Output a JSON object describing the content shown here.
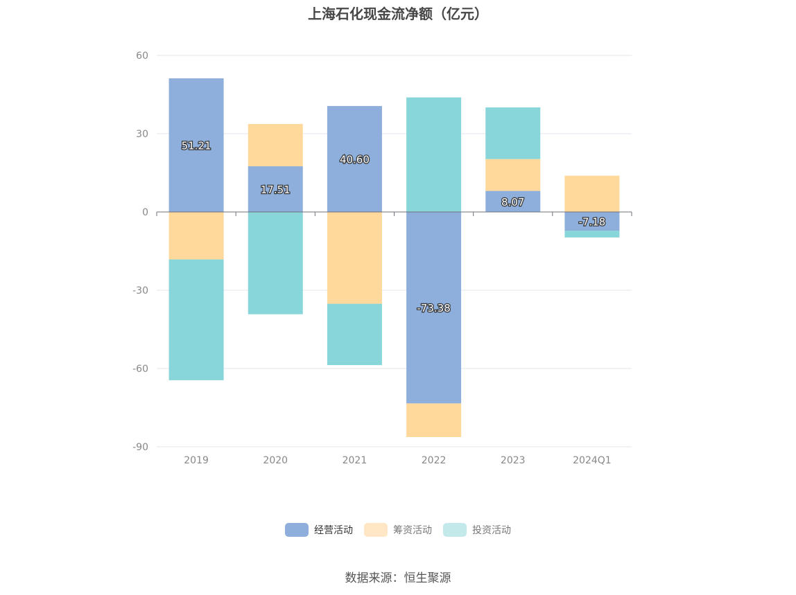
{
  "chart_data": {
    "type": "bar",
    "stacked": true,
    "title": "上海石化现金流净额（亿元）",
    "categories": [
      "2019",
      "2020",
      "2021",
      "2022",
      "2023",
      "2024Q1"
    ],
    "ylim": [
      -90,
      60
    ],
    "yticks": [
      60,
      30,
      0,
      -30,
      -60,
      -90
    ],
    "grid": true,
    "legend_position": "bottom",
    "series": [
      {
        "name": "经营活动",
        "color": "#8EAEDB",
        "values": [
          51.21,
          17.51,
          40.6,
          -73.38,
          8.07,
          -7.18
        ],
        "labels": [
          "51.21",
          "17.51",
          "40.60",
          "-73.38",
          "8.07",
          "-7.18"
        ]
      },
      {
        "name": "筹资活动",
        "color": "#FFD99B",
        "values": [
          -18.2,
          16.2,
          -35.2,
          -12.9,
          12.2,
          13.9
        ]
      },
      {
        "name": "投资活动",
        "color": "#88D6D9",
        "values": [
          -46.3,
          -39.2,
          -23.5,
          43.9,
          19.8,
          -2.6
        ]
      }
    ],
    "legend_colors": [
      "#8EAEDB",
      "#FFE6C4",
      "#C3E9EA"
    ],
    "source": "数据来源：恒生聚源"
  }
}
